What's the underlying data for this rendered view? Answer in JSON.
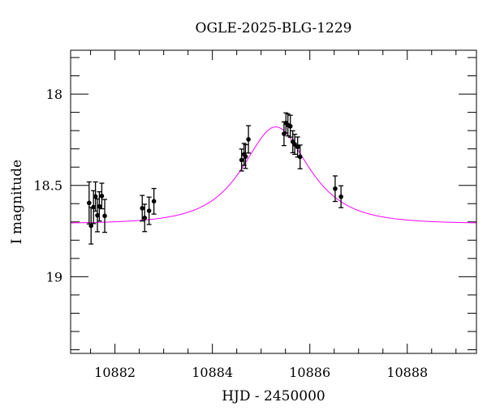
{
  "chart_data": {
    "type": "scatter",
    "title": "OGLE-2025-BLG-1229",
    "xlabel": "HJD - 2450000",
    "ylabel": "I magnitude",
    "xlim": [
      10881.09,
      10889.42
    ],
    "ylim": [
      19.42,
      17.76
    ],
    "y_inverted": true,
    "x_ticks": [
      10882,
      10884,
      10886,
      10888
    ],
    "x_minor_step": 0.5,
    "y_ticks": [
      18,
      18.5,
      19
    ],
    "y_minor_step": 0.1,
    "grid": false,
    "colors": {
      "points": "#000000",
      "errorbars": "#000000",
      "model": "#ff00ff"
    },
    "points": {
      "x": [
        10881.47,
        10881.51,
        10881.56,
        10881.6,
        10881.64,
        10881.68,
        10881.73,
        10881.79,
        10882.56,
        10882.61,
        10882.7,
        10882.8,
        10884.6,
        10884.65,
        10884.68,
        10884.74,
        10885.47,
        10885.51,
        10885.55,
        10885.6,
        10885.65,
        10885.69,
        10885.75,
        10885.8,
        10886.52,
        10886.64
      ],
      "y": [
        18.596,
        18.721,
        18.619,
        18.561,
        18.664,
        18.615,
        18.558,
        18.667,
        18.625,
        18.678,
        18.639,
        18.587,
        18.361,
        18.33,
        18.342,
        18.248,
        18.217,
        18.158,
        18.169,
        18.176,
        18.261,
        18.275,
        18.29,
        18.344,
        18.518,
        18.562
      ],
      "err": [
        0.115,
        0.1,
        0.09,
        0.08,
        0.09,
        0.08,
        0.07,
        0.09,
        0.07,
        0.075,
        0.075,
        0.07,
        0.06,
        0.06,
        0.065,
        0.075,
        0.065,
        0.055,
        0.06,
        0.06,
        0.06,
        0.055,
        0.055,
        0.065,
        0.07,
        0.06
      ]
    },
    "model": {
      "type": "point-lens",
      "t0": 10885.3,
      "u0": 0.73,
      "tE": 0.96,
      "baseline_mag": 18.71
    }
  }
}
